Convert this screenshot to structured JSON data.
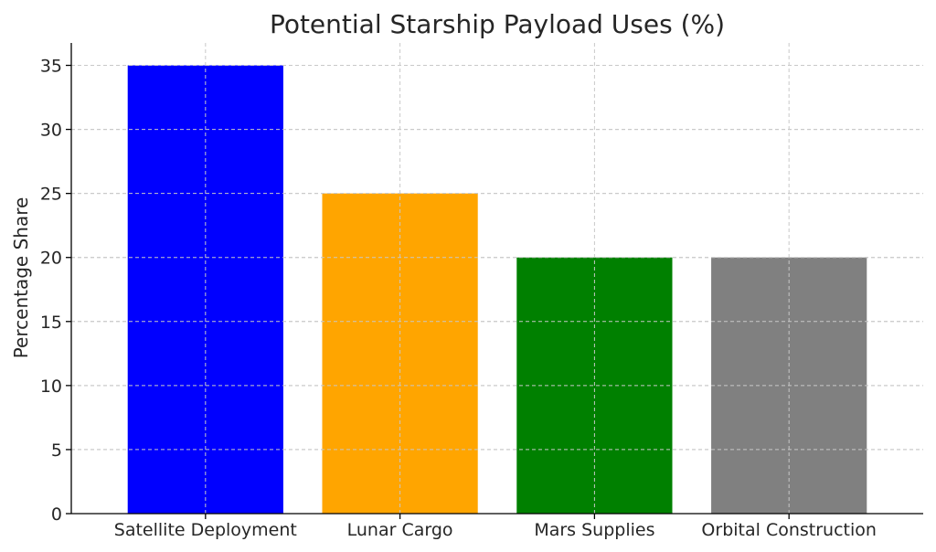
{
  "chart_data": {
    "type": "bar",
    "title": "Potential Starship Payload Uses (%)",
    "xlabel": "",
    "ylabel": "Percentage Share",
    "categories": [
      "Satellite Deployment",
      "Lunar Cargo",
      "Mars Supplies",
      "Orbital Construction"
    ],
    "values": [
      35,
      25,
      20,
      20
    ],
    "colors": [
      "#0000ff",
      "#ffa500",
      "#008000",
      "#808080"
    ],
    "ylim": [
      0,
      36.75
    ],
    "yticks": [
      0,
      5,
      10,
      15,
      20,
      25,
      30,
      35
    ],
    "grid": true,
    "legend": "none"
  }
}
